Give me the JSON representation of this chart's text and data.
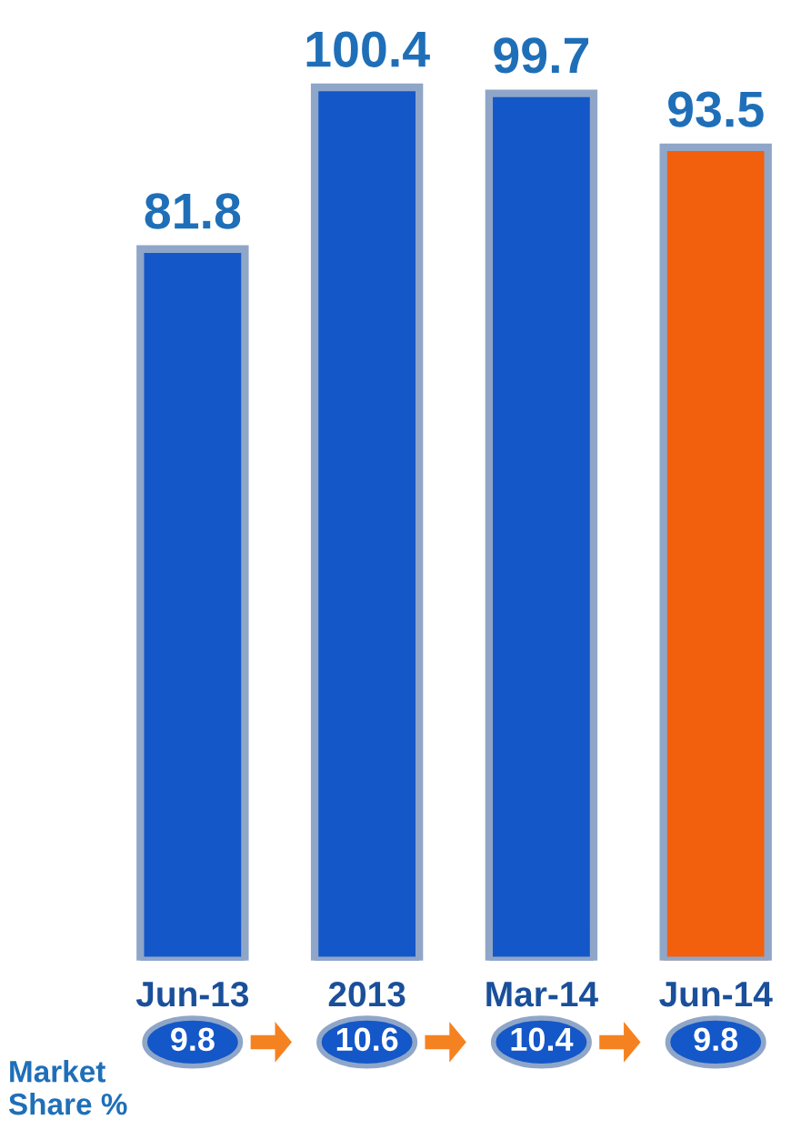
{
  "chart_data": {
    "type": "bar",
    "categories": [
      "Jun-13",
      "2013",
      "Mar-14",
      "Jun-14"
    ],
    "values": [
      81.8,
      100.4,
      99.7,
      93.5
    ],
    "colors": [
      "#1457c8",
      "#1457c8",
      "#1457c8",
      "#f2600e"
    ],
    "data_labels": true,
    "annotations": [
      "Market\nShare %",
      "9.8",
      "10.6",
      "10.4",
      "9.8"
    ]
  }
}
